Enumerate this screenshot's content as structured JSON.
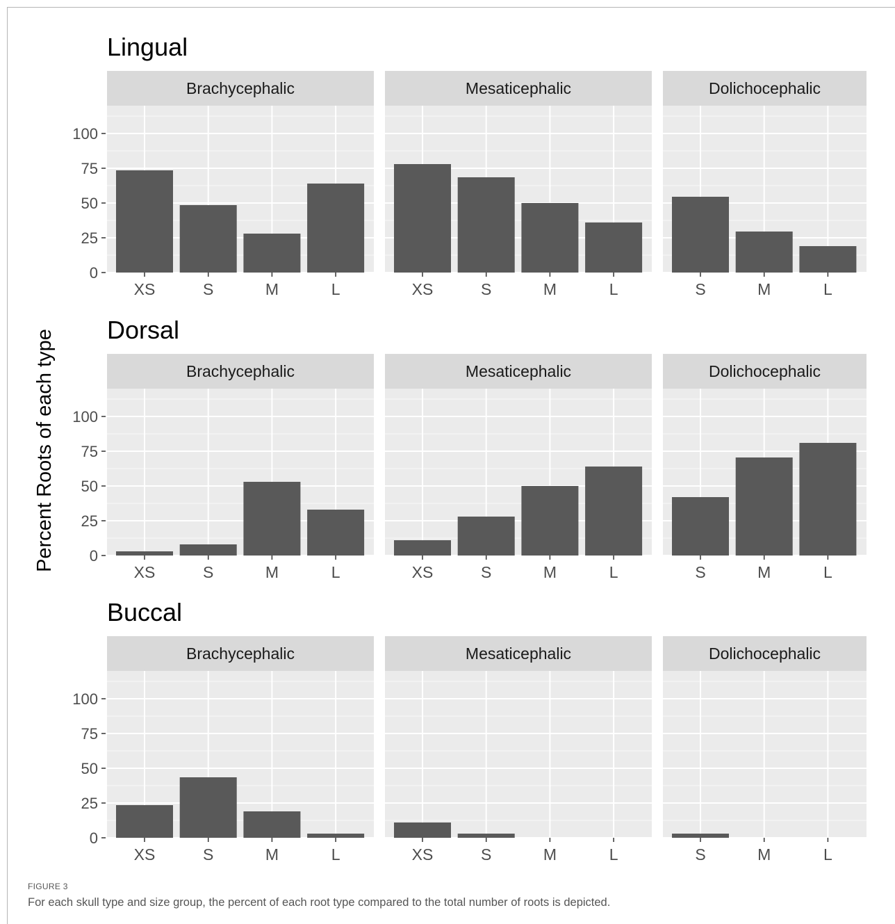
{
  "figure": {
    "label": "FIGURE 3",
    "caption": "For each skull type and size group, the percent of each root type compared to the total number of roots is depicted."
  },
  "chart_data": {
    "type": "bar",
    "ylabel": "Percent Roots of each type",
    "ylim": [
      0,
      120
    ],
    "yticks": [
      0,
      25,
      50,
      75,
      100
    ],
    "grid": true,
    "colors": {
      "bar": "#595959",
      "panel": "#ebebeb",
      "strip": "#d9d9d9",
      "grid": "#ffffff"
    },
    "rows": [
      {
        "title": "Lingual",
        "facets": [
          {
            "name": "Brachycephalic",
            "categories": [
              "XS",
              "S",
              "M",
              "L"
            ],
            "values": [
              73.5,
              48.5,
              28,
              64
            ]
          },
          {
            "name": "Mesaticephalic",
            "categories": [
              "XS",
              "S",
              "M",
              "L"
            ],
            "values": [
              78,
              68.5,
              50,
              36
            ]
          },
          {
            "name": "Dolichocephalic",
            "categories": [
              "S",
              "M",
              "L"
            ],
            "values": [
              54.5,
              29.5,
              19
            ]
          }
        ]
      },
      {
        "title": "Dorsal",
        "facets": [
          {
            "name": "Brachycephalic",
            "categories": [
              "XS",
              "S",
              "M",
              "L"
            ],
            "values": [
              3,
              8,
              53,
              33
            ]
          },
          {
            "name": "Mesaticephalic",
            "categories": [
              "XS",
              "S",
              "M",
              "L"
            ],
            "values": [
              11,
              28,
              50,
              64
            ]
          },
          {
            "name": "Dolichocephalic",
            "categories": [
              "S",
              "M",
              "L"
            ],
            "values": [
              42,
              70.5,
              81
            ]
          }
        ]
      },
      {
        "title": "Buccal",
        "facets": [
          {
            "name": "Brachycephalic",
            "categories": [
              "XS",
              "S",
              "M",
              "L"
            ],
            "values": [
              23.5,
              43.5,
              19,
              3
            ]
          },
          {
            "name": "Mesaticephalic",
            "categories": [
              "XS",
              "S",
              "M",
              "L"
            ],
            "values": [
              11,
              3,
              0,
              0
            ]
          },
          {
            "name": "Dolichocephalic",
            "categories": [
              "S",
              "M",
              "L"
            ],
            "values": [
              3,
              0,
              0
            ]
          }
        ]
      }
    ]
  }
}
